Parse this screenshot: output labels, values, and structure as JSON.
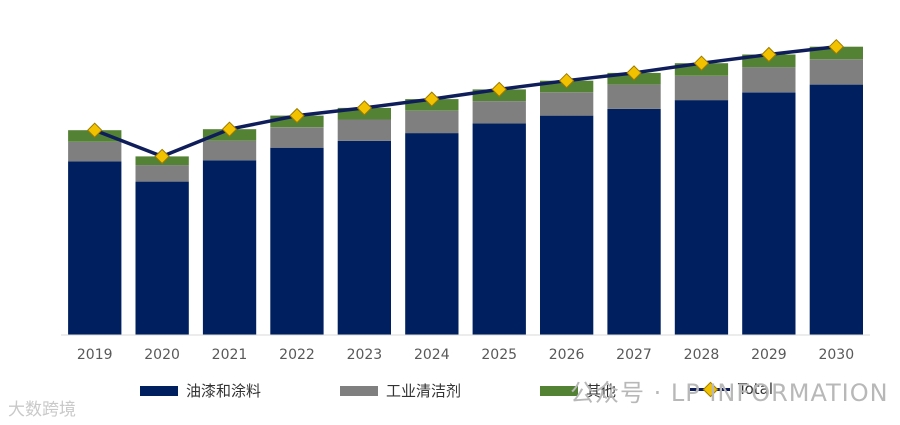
{
  "chart_data": {
    "type": "bar",
    "stacked": true,
    "title": "",
    "xlabel": "",
    "ylabel": "",
    "ylim": [
      0,
      340
    ],
    "grid": false,
    "legend_position": "bottom",
    "categories": [
      "2019",
      "2020",
      "2021",
      "2022",
      "2023",
      "2024",
      "2025",
      "2026",
      "2027",
      "2028",
      "2029",
      "2030"
    ],
    "series": [
      {
        "name": "油漆和涂料",
        "color": "#001f5e",
        "values": [
          179,
          158,
          180,
          193,
          200,
          208,
          218,
          226,
          233,
          242,
          250,
          258
        ]
      },
      {
        "name": "工业清洁剂",
        "color": "#7f7f7f",
        "values": [
          20,
          17,
          20,
          21,
          22,
          23,
          23,
          24,
          25,
          25,
          26,
          26
        ]
      },
      {
        "name": "其他",
        "color": "#548235",
        "values": [
          12,
          9,
          12,
          12,
          12,
          12,
          12,
          12,
          12,
          13,
          13,
          13
        ]
      }
    ],
    "total": {
      "name": "Total",
      "color": "#0f1e5a",
      "marker_color": "#f2c200",
      "values": [
        211,
        184,
        212,
        226,
        234,
        243,
        253,
        262,
        270,
        280,
        289,
        297
      ]
    }
  },
  "watermarks": {
    "right": "公众号 · LP INFORMATION",
    "left": "大数跨境"
  }
}
